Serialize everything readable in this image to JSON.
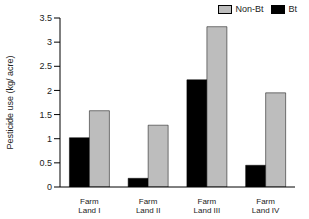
{
  "chart_data": {
    "type": "bar",
    "categories": [
      "Farm Land I",
      "Farm Land II",
      "Farm Land III",
      "Farm Land IV"
    ],
    "series": [
      {
        "name": "Bt",
        "color": "#000000",
        "values": [
          1.02,
          0.18,
          2.22,
          0.45
        ]
      },
      {
        "name": "Non-Bt",
        "color": "#bdbdbd",
        "values": [
          1.58,
          1.28,
          3.32,
          1.95
        ]
      }
    ],
    "y_label": "Pesticide use (kg/ acre)",
    "ylim": [
      0,
      3.5
    ],
    "yticks": [
      0,
      0.5,
      1,
      1.5,
      2,
      2.5,
      3,
      3.5
    ],
    "legend": "upper right",
    "grid": false
  }
}
